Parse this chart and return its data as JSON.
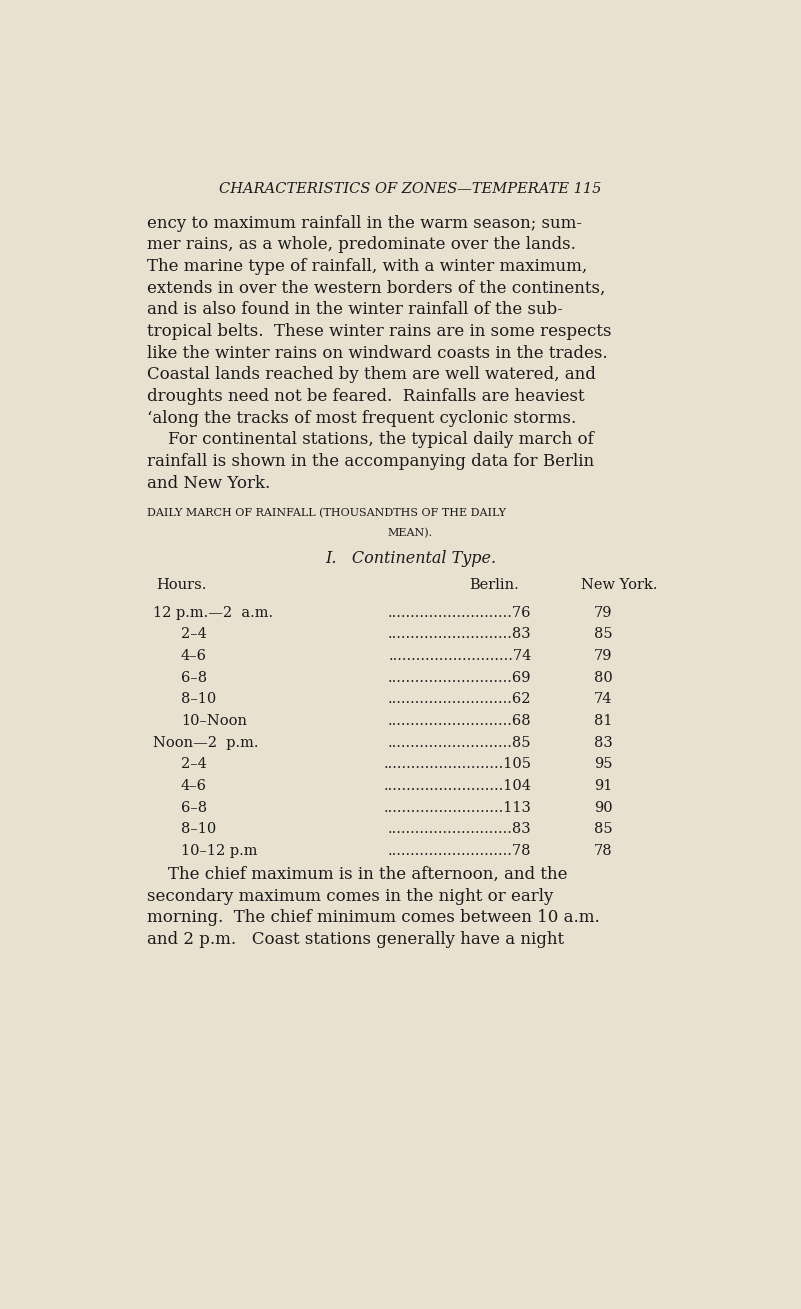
{
  "bg_color": "#e8e1d0",
  "text_color": "#1a1a1a",
  "page_width": 8.01,
  "page_height": 13.09,
  "header": "CHARACTERISTICS OF ZONES—TEMPERATE 115",
  "para1_lines": [
    "ency to maximum rainfall in the warm season; sum-",
    "mer rains, as a whole, predominate over the lands.",
    "The marine type of rainfall, with a winter maximum,",
    "extends in over the western borders of the continents,",
    "and is also found in the winter rainfall of the sub-",
    "tropical belts.  These winter rains are in some respects",
    "like the winter rains on windward coasts in the trades.",
    "Coastal lands reached by them are well watered, and",
    "droughts need not be feared.  Rainfalls are heaviest",
    "ʻalong the tracks of most frequent cyclonic storms."
  ],
  "para2_lines": [
    "    For continental stations, the typical daily march of",
    "rainfall is shown in the accompanying data for Berlin",
    "and New York."
  ],
  "table_title1": "DAILY MARCH OF RAINFALL (THOUSANDTHS OF THE DAILY",
  "table_title2": "MEAN).",
  "table_subtitle": "I.   Continental Type.",
  "col_headers": [
    "Hours.",
    "Berlin.",
    "New York."
  ],
  "table_rows": [
    [
      "12 p.m.—2  a.m.",
      "...........................76",
      "79"
    ],
    [
      "2–4",
      "...........................83",
      "85"
    ],
    [
      "4–6",
      "...........................74",
      "79"
    ],
    [
      "6–8",
      "...........................69",
      "80"
    ],
    [
      "8–10",
      "...........................62",
      "74"
    ],
    [
      "10–Noon",
      "...........................68",
      "81"
    ],
    [
      "Noon—2  p.m.",
      "...........................85",
      "83"
    ],
    [
      "2–4",
      "..........................105",
      "95"
    ],
    [
      "4–6",
      "..........................104",
      "91"
    ],
    [
      "6–8",
      "..........................113",
      "90"
    ],
    [
      "8–10",
      "...........................83",
      "85"
    ],
    [
      "10–12 p.m",
      "...........................78",
      "78"
    ]
  ],
  "para3_lines": [
    "    The chief maximum is in the afternoon, and the",
    "secondary maximum comes in the night or early",
    "morning.  The chief minimum comes between 10 a.m.",
    "and 2 p.m.   Coast stations generally have a night"
  ]
}
